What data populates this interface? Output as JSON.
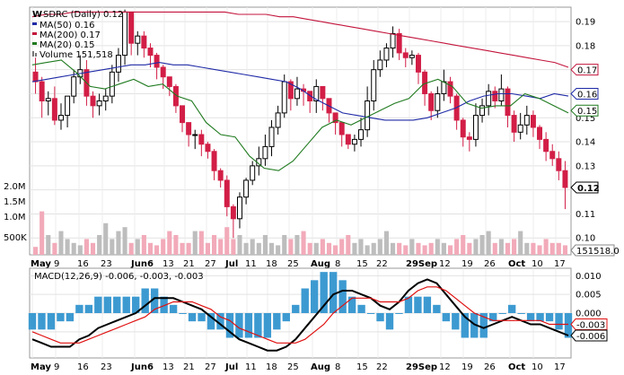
{
  "header": {
    "ticker_line": "SDRC (Daily) 0.12"
  },
  "legend": [
    {
      "label": "MA(50) 0.16",
      "color": "#1f2aa6"
    },
    {
      "label": "MA(200) 0.17",
      "color": "#c3143c"
    },
    {
      "label": "MA(20) 0.15",
      "color": "#1f7a1f"
    },
    {
      "label": "Volume 151,518",
      "color": "#888888"
    }
  ],
  "colors": {
    "up": "#000000",
    "down": "#d21e46",
    "ma50": "#1f2aa6",
    "ma200": "#c3143c",
    "ma20": "#1f7a1f",
    "vol_up": "#f2aab9",
    "vol_down": "#bdbdbd",
    "macd": "#000000",
    "signal": "#e01010",
    "hist": "#3d9ad1",
    "grid": "#e2e2e2"
  },
  "chart_data": [
    {
      "type": "candlestick",
      "title": "SDRC (Daily) 0.12",
      "y_ticks": [
        0.19,
        0.18,
        0.17,
        0.16,
        0.15,
        0.14,
        0.13,
        0.12,
        0.11,
        0.1
      ],
      "ylim": [
        0.093,
        0.196
      ],
      "x_labels": [
        "May",
        "9",
        "16",
        "23",
        "Jun6",
        "13",
        "21",
        "27",
        "Jul",
        "11",
        "18",
        "25",
        "Aug",
        "8",
        "15",
        "22",
        "29Sep",
        "12",
        "19",
        "26",
        "Oct",
        "10",
        "17"
      ],
      "price_tags": [
        {
          "text": "0.17",
          "value": 0.17,
          "color": "#c3143c"
        },
        {
          "text": "0.16",
          "value": 0.16,
          "color": "#1f2aa6"
        },
        {
          "text": "0.15",
          "value": 0.153,
          "color": "#1f7a1f"
        },
        {
          "text": "0.12",
          "value": 0.121,
          "color": "#000000"
        }
      ],
      "volume_ticks": [
        "2.0M",
        "1.5M",
        "1.0M",
        "500K"
      ],
      "volume_last": "151518.0",
      "series": [
        {
          "name": "MA(50)",
          "values": [
            0.165,
            0.166,
            0.167,
            0.168,
            0.169,
            0.17,
            0.171,
            0.172,
            0.172,
            0.173,
            0.172,
            0.172,
            0.171,
            0.17,
            0.169,
            0.168,
            0.167,
            0.166,
            0.165,
            0.162,
            0.158,
            0.155,
            0.152,
            0.151,
            0.15,
            0.149,
            0.149,
            0.149,
            0.15,
            0.152,
            0.154,
            0.157,
            0.159,
            0.16,
            0.16,
            0.159,
            0.158,
            0.16,
            0.159
          ]
        },
        {
          "name": "MA(200)",
          "values": [
            0.192,
            0.193,
            0.193,
            0.194,
            0.194,
            0.194,
            0.194,
            0.194,
            0.194,
            0.194,
            0.194,
            0.194,
            0.194,
            0.194,
            0.194,
            0.193,
            0.193,
            0.193,
            0.192,
            0.192,
            0.191,
            0.19,
            0.189,
            0.188,
            0.187,
            0.186,
            0.185,
            0.184,
            0.183,
            0.182,
            0.181,
            0.18,
            0.179,
            0.178,
            0.177,
            0.176,
            0.175,
            0.174,
            0.173,
            0.171
          ]
        },
        {
          "name": "MA(20)",
          "values": [
            0.172,
            0.173,
            0.174,
            0.169,
            0.163,
            0.162,
            0.164,
            0.166,
            0.163,
            0.164,
            0.159,
            0.157,
            0.148,
            0.143,
            0.142,
            0.134,
            0.129,
            0.128,
            0.132,
            0.139,
            0.146,
            0.149,
            0.147,
            0.15,
            0.153,
            0.156,
            0.158,
            0.164,
            0.166,
            0.163,
            0.156,
            0.154,
            0.155,
            0.155,
            0.16,
            0.158,
            0.155,
            0.152
          ]
        }
      ],
      "candles_open": [
        0.169,
        0.165,
        0.157,
        0.158,
        0.149,
        0.151,
        0.159,
        0.167,
        0.17,
        0.159,
        0.155,
        0.157,
        0.159,
        0.169,
        0.176,
        0.194,
        0.181,
        0.184,
        0.179,
        0.176,
        0.171,
        0.167,
        0.163,
        0.155,
        0.148,
        0.143,
        0.143,
        0.139,
        0.136,
        0.128,
        0.124,
        0.113,
        0.108,
        0.117,
        0.124,
        0.13,
        0.133,
        0.138,
        0.146,
        0.152,
        0.165,
        0.158,
        0.162,
        0.161,
        0.157,
        0.163,
        0.158,
        0.152,
        0.148,
        0.143,
        0.139,
        0.141,
        0.145,
        0.157,
        0.17,
        0.174,
        0.179,
        0.185,
        0.177,
        0.175,
        0.176,
        0.169,
        0.16,
        0.153,
        0.16,
        0.165,
        0.159,
        0.149,
        0.142,
        0.141,
        0.151,
        0.155,
        0.161,
        0.157,
        0.162,
        0.151,
        0.144,
        0.147,
        0.151,
        0.146,
        0.141,
        0.136,
        0.133,
        0.128
      ],
      "candles_close": [
        0.165,
        0.157,
        0.158,
        0.149,
        0.151,
        0.159,
        0.167,
        0.17,
        0.159,
        0.155,
        0.157,
        0.159,
        0.169,
        0.176,
        0.194,
        0.181,
        0.184,
        0.179,
        0.176,
        0.171,
        0.167,
        0.163,
        0.155,
        0.148,
        0.143,
        0.143,
        0.139,
        0.136,
        0.128,
        0.124,
        0.113,
        0.108,
        0.117,
        0.124,
        0.13,
        0.133,
        0.138,
        0.146,
        0.152,
        0.165,
        0.158,
        0.162,
        0.161,
        0.157,
        0.163,
        0.158,
        0.152,
        0.148,
        0.143,
        0.139,
        0.141,
        0.145,
        0.157,
        0.17,
        0.174,
        0.179,
        0.185,
        0.177,
        0.175,
        0.176,
        0.169,
        0.16,
        0.153,
        0.16,
        0.165,
        0.159,
        0.149,
        0.142,
        0.141,
        0.151,
        0.155,
        0.161,
        0.157,
        0.162,
        0.151,
        0.144,
        0.147,
        0.151,
        0.146,
        0.141,
        0.136,
        0.133,
        0.128,
        0.121
      ],
      "candles_high": [
        0.175,
        0.167,
        0.161,
        0.163,
        0.156,
        0.158,
        0.17,
        0.176,
        0.174,
        0.161,
        0.16,
        0.162,
        0.172,
        0.179,
        0.195,
        0.194,
        0.186,
        0.186,
        0.181,
        0.177,
        0.172,
        0.167,
        0.164,
        0.155,
        0.148,
        0.145,
        0.145,
        0.14,
        0.137,
        0.129,
        0.126,
        0.114,
        0.119,
        0.125,
        0.132,
        0.138,
        0.143,
        0.149,
        0.155,
        0.168,
        0.166,
        0.167,
        0.164,
        0.161,
        0.166,
        0.163,
        0.156,
        0.15,
        0.147,
        0.142,
        0.143,
        0.15,
        0.163,
        0.174,
        0.178,
        0.181,
        0.188,
        0.187,
        0.179,
        0.178,
        0.177,
        0.17,
        0.161,
        0.163,
        0.17,
        0.167,
        0.16,
        0.15,
        0.144,
        0.156,
        0.158,
        0.164,
        0.163,
        0.168,
        0.163,
        0.153,
        0.152,
        0.155,
        0.153,
        0.147,
        0.144,
        0.139,
        0.136,
        0.132
      ],
      "candles_low": [
        0.16,
        0.15,
        0.151,
        0.147,
        0.145,
        0.146,
        0.156,
        0.164,
        0.155,
        0.15,
        0.151,
        0.153,
        0.156,
        0.165,
        0.172,
        0.176,
        0.176,
        0.175,
        0.171,
        0.166,
        0.162,
        0.159,
        0.152,
        0.144,
        0.138,
        0.137,
        0.134,
        0.133,
        0.124,
        0.121,
        0.109,
        0.1,
        0.104,
        0.114,
        0.122,
        0.126,
        0.13,
        0.134,
        0.143,
        0.15,
        0.153,
        0.155,
        0.155,
        0.152,
        0.152,
        0.153,
        0.148,
        0.143,
        0.138,
        0.137,
        0.136,
        0.138,
        0.142,
        0.153,
        0.167,
        0.171,
        0.175,
        0.174,
        0.171,
        0.172,
        0.164,
        0.155,
        0.149,
        0.15,
        0.157,
        0.156,
        0.145,
        0.138,
        0.136,
        0.138,
        0.148,
        0.151,
        0.154,
        0.155,
        0.146,
        0.14,
        0.141,
        0.143,
        0.142,
        0.137,
        0.132,
        0.13,
        0.124,
        0.112
      ],
      "volume_pct": [
        0.1,
        0.55,
        0.25,
        0.15,
        0.3,
        0.2,
        0.15,
        0.12,
        0.2,
        0.15,
        0.25,
        0.4,
        0.2,
        0.3,
        0.35,
        0.15,
        0.2,
        0.25,
        0.15,
        0.12,
        0.2,
        0.3,
        0.25,
        0.15,
        0.15,
        0.3,
        0.3,
        0.15,
        0.25,
        0.2,
        0.35,
        0.2,
        0.25,
        0.15,
        0.2,
        0.15,
        0.25,
        0.15,
        0.12,
        0.25,
        0.2,
        0.25,
        0.3,
        0.15,
        0.15,
        0.2,
        0.15,
        0.12,
        0.2,
        0.25,
        0.15,
        0.2,
        0.12,
        0.15,
        0.2,
        0.3,
        0.15,
        0.15,
        0.12,
        0.2,
        0.15,
        0.12,
        0.15,
        0.2,
        0.15,
        0.12,
        0.2,
        0.25,
        0.15,
        0.2,
        0.25,
        0.3,
        0.15,
        0.2,
        0.15,
        0.2,
        0.3,
        0.15,
        0.15,
        0.12,
        0.2,
        0.15,
        0.15,
        0.12
      ]
    },
    {
      "type": "line",
      "title": "MACD(12,26,9) -0.006, -0.003, -0.003",
      "y_ticks": [
        0.01,
        0.005,
        0.0,
        -0.005
      ],
      "ylim": [
        -0.012,
        0.012
      ],
      "x_labels": [
        "May",
        "9",
        "16",
        "23",
        "Jun6",
        "13",
        "21",
        "27",
        "Jul",
        "11",
        "18",
        "25",
        "Aug",
        "8",
        "15",
        "22",
        "29Sep",
        "12",
        "19",
        "26",
        "Oct",
        "10",
        "17"
      ],
      "value_tags": [
        {
          "text": "-0.003",
          "value": -0.003,
          "color": "#e01010"
        },
        {
          "text": "-0.006",
          "value": -0.006,
          "color": "#000000"
        }
      ],
      "series": [
        {
          "name": "MACD",
          "values": [
            -0.007,
            -0.008,
            -0.009,
            -0.009,
            -0.009,
            -0.007,
            -0.006,
            -0.004,
            -0.003,
            -0.002,
            -0.001,
            0.0,
            0.002,
            0.004,
            0.004,
            0.004,
            0.003,
            0.002,
            0.001,
            -0.001,
            -0.003,
            -0.005,
            -0.007,
            -0.008,
            -0.009,
            -0.01,
            -0.01,
            -0.009,
            -0.007,
            -0.004,
            -0.001,
            0.002,
            0.005,
            0.006,
            0.006,
            0.005,
            0.004,
            0.002,
            0.001,
            0.003,
            0.006,
            0.008,
            0.009,
            0.008,
            0.005,
            0.002,
            -0.001,
            -0.003,
            -0.004,
            -0.003,
            -0.002,
            -0.001,
            -0.002,
            -0.003,
            -0.003,
            -0.004,
            -0.005,
            -0.006
          ]
        },
        {
          "name": "Signal",
          "values": [
            -0.005,
            -0.006,
            -0.007,
            -0.008,
            -0.008,
            -0.008,
            -0.007,
            -0.006,
            -0.005,
            -0.004,
            -0.003,
            -0.002,
            -0.001,
            0.001,
            0.002,
            0.003,
            0.003,
            0.003,
            0.002,
            0.001,
            -0.001,
            -0.002,
            -0.004,
            -0.005,
            -0.006,
            -0.007,
            -0.008,
            -0.008,
            -0.008,
            -0.007,
            -0.005,
            -0.003,
            0.0,
            0.002,
            0.004,
            0.004,
            0.004,
            0.003,
            0.003,
            0.003,
            0.004,
            0.006,
            0.007,
            0.007,
            0.006,
            0.004,
            0.002,
            0.0,
            -0.001,
            -0.002,
            -0.002,
            -0.002,
            -0.002,
            -0.002,
            -0.002,
            -0.003,
            -0.003,
            -0.003
          ]
        }
      ]
    }
  ]
}
